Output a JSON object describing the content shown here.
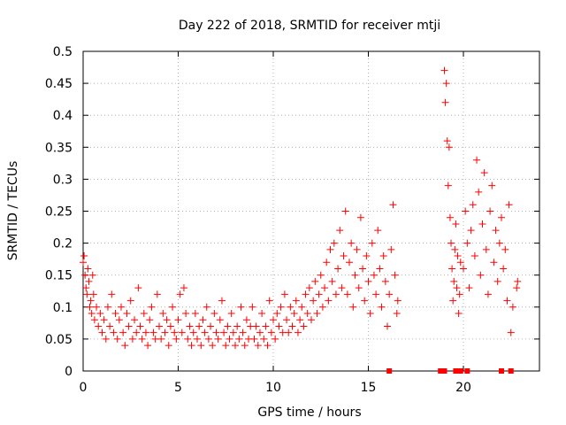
{
  "chart_data": {
    "type": "scatter",
    "title": "Day 222 of 2018, SRMTID for receiver mtji",
    "xlabel": "GPS time / hours",
    "ylabel": "SRMTID / TECUs",
    "xlim": [
      0,
      24
    ],
    "ylim": [
      0,
      0.5
    ],
    "x_ticks": [
      0,
      5,
      10,
      15,
      20
    ],
    "y_ticks": [
      0,
      0.05,
      0.1,
      0.15,
      0.2,
      0.25,
      0.3,
      0.35,
      0.4,
      0.45,
      0.5
    ],
    "grid": true,
    "legend": "none",
    "marker": "+",
    "color": "#ff0000",
    "series": [
      {
        "values_note": "",
        "points": [
          [
            0.0,
            0.17
          ],
          [
            0.05,
            0.18
          ],
          [
            0.1,
            0.15
          ],
          [
            0.15,
            0.13
          ],
          [
            0.2,
            0.12
          ],
          [
            0.25,
            0.16
          ],
          [
            0.3,
            0.14
          ],
          [
            0.35,
            0.1
          ],
          [
            0.4,
            0.11
          ],
          [
            0.45,
            0.09
          ],
          [
            0.5,
            0.15
          ],
          [
            0.55,
            0.12
          ],
          [
            0.6,
            0.08
          ],
          [
            0.7,
            0.1
          ],
          [
            0.8,
            0.07
          ],
          [
            0.9,
            0.09
          ],
          [
            1.0,
            0.06
          ],
          [
            1.1,
            0.08
          ],
          [
            1.2,
            0.05
          ],
          [
            1.3,
            0.1
          ],
          [
            1.4,
            0.07
          ],
          [
            1.5,
            0.12
          ],
          [
            1.6,
            0.06
          ],
          [
            1.7,
            0.09
          ],
          [
            1.8,
            0.05
          ],
          [
            1.9,
            0.08
          ],
          [
            2.0,
            0.1
          ],
          [
            2.1,
            0.06
          ],
          [
            2.2,
            0.04
          ],
          [
            2.3,
            0.09
          ],
          [
            2.4,
            0.07
          ],
          [
            2.5,
            0.11
          ],
          [
            2.6,
            0.05
          ],
          [
            2.7,
            0.08
          ],
          [
            2.8,
            0.06
          ],
          [
            2.9,
            0.13
          ],
          [
            3.0,
            0.07
          ],
          [
            3.1,
            0.05
          ],
          [
            3.2,
            0.09
          ],
          [
            3.3,
            0.06
          ],
          [
            3.4,
            0.04
          ],
          [
            3.5,
            0.08
          ],
          [
            3.6,
            0.1
          ],
          [
            3.7,
            0.06
          ],
          [
            3.8,
            0.05
          ],
          [
            3.9,
            0.12
          ],
          [
            4.0,
            0.07
          ],
          [
            4.1,
            0.05
          ],
          [
            4.2,
            0.09
          ],
          [
            4.3,
            0.06
          ],
          [
            4.4,
            0.08
          ],
          [
            4.5,
            0.04
          ],
          [
            4.6,
            0.07
          ],
          [
            4.7,
            0.1
          ],
          [
            4.8,
            0.06
          ],
          [
            4.9,
            0.05
          ],
          [
            5.0,
            0.08
          ],
          [
            5.1,
            0.12
          ],
          [
            5.2,
            0.06
          ],
          [
            5.3,
            0.13
          ],
          [
            5.4,
            0.09
          ],
          [
            5.5,
            0.05
          ],
          [
            5.6,
            0.07
          ],
          [
            5.7,
            0.04
          ],
          [
            5.8,
            0.06
          ],
          [
            5.9,
            0.09
          ],
          [
            6.0,
            0.05
          ],
          [
            6.1,
            0.07
          ],
          [
            6.2,
            0.04
          ],
          [
            6.3,
            0.08
          ],
          [
            6.4,
            0.06
          ],
          [
            6.5,
            0.1
          ],
          [
            6.6,
            0.05
          ],
          [
            6.7,
            0.07
          ],
          [
            6.8,
            0.04
          ],
          [
            6.9,
            0.09
          ],
          [
            7.0,
            0.06
          ],
          [
            7.1,
            0.05
          ],
          [
            7.2,
            0.08
          ],
          [
            7.3,
            0.11
          ],
          [
            7.4,
            0.06
          ],
          [
            7.5,
            0.04
          ],
          [
            7.6,
            0.07
          ],
          [
            7.7,
            0.05
          ],
          [
            7.8,
            0.09
          ],
          [
            7.9,
            0.06
          ],
          [
            8.0,
            0.04
          ],
          [
            8.1,
            0.07
          ],
          [
            8.2,
            0.05
          ],
          [
            8.3,
            0.1
          ],
          [
            8.4,
            0.06
          ],
          [
            8.5,
            0.04
          ],
          [
            8.6,
            0.08
          ],
          [
            8.7,
            0.05
          ],
          [
            8.8,
            0.07
          ],
          [
            8.9,
            0.1
          ],
          [
            9.0,
            0.05
          ],
          [
            9.1,
            0.07
          ],
          [
            9.2,
            0.04
          ],
          [
            9.3,
            0.06
          ],
          [
            9.4,
            0.09
          ],
          [
            9.5,
            0.05
          ],
          [
            9.6,
            0.07
          ],
          [
            9.7,
            0.04
          ],
          [
            9.8,
            0.11
          ],
          [
            9.9,
            0.06
          ],
          [
            10.0,
            0.08
          ],
          [
            10.1,
            0.05
          ],
          [
            10.2,
            0.09
          ],
          [
            10.3,
            0.07
          ],
          [
            10.4,
            0.1
          ],
          [
            10.5,
            0.06
          ],
          [
            10.6,
            0.12
          ],
          [
            10.7,
            0.08
          ],
          [
            10.8,
            0.06
          ],
          [
            10.9,
            0.1
          ],
          [
            11.0,
            0.07
          ],
          [
            11.1,
            0.09
          ],
          [
            11.2,
            0.11
          ],
          [
            11.3,
            0.06
          ],
          [
            11.4,
            0.08
          ],
          [
            11.5,
            0.1
          ],
          [
            11.6,
            0.07
          ],
          [
            11.7,
            0.12
          ],
          [
            11.8,
            0.09
          ],
          [
            11.9,
            0.13
          ],
          [
            12.0,
            0.08
          ],
          [
            12.1,
            0.11
          ],
          [
            12.2,
            0.14
          ],
          [
            12.3,
            0.09
          ],
          [
            12.4,
            0.12
          ],
          [
            12.5,
            0.15
          ],
          [
            12.6,
            0.1
          ],
          [
            12.7,
            0.13
          ],
          [
            12.8,
            0.17
          ],
          [
            12.9,
            0.11
          ],
          [
            13.0,
            0.19
          ],
          [
            13.1,
            0.14
          ],
          [
            13.2,
            0.2
          ],
          [
            13.3,
            0.12
          ],
          [
            13.4,
            0.16
          ],
          [
            13.5,
            0.22
          ],
          [
            13.6,
            0.13
          ],
          [
            13.7,
            0.18
          ],
          [
            13.8,
            0.25
          ],
          [
            13.9,
            0.12
          ],
          [
            14.0,
            0.17
          ],
          [
            14.1,
            0.2
          ],
          [
            14.2,
            0.1
          ],
          [
            14.3,
            0.15
          ],
          [
            14.4,
            0.19
          ],
          [
            14.5,
            0.13
          ],
          [
            14.6,
            0.24
          ],
          [
            14.7,
            0.16
          ],
          [
            14.8,
            0.11
          ],
          [
            14.9,
            0.18
          ],
          [
            15.0,
            0.14
          ],
          [
            15.1,
            0.09
          ],
          [
            15.2,
            0.2
          ],
          [
            15.3,
            0.15
          ],
          [
            15.4,
            0.12
          ],
          [
            15.5,
            0.22
          ],
          [
            15.6,
            0.16
          ],
          [
            15.7,
            0.1
          ],
          [
            15.8,
            0.18
          ],
          [
            15.9,
            0.14
          ],
          [
            16.0,
            0.07
          ],
          [
            16.1,
            0.12
          ],
          [
            16.2,
            0.19
          ],
          [
            16.3,
            0.26
          ],
          [
            16.4,
            0.15
          ],
          [
            16.5,
            0.09
          ],
          [
            16.55,
            0.11
          ],
          [
            19.0,
            0.47
          ],
          [
            19.05,
            0.42
          ],
          [
            19.1,
            0.45
          ],
          [
            19.15,
            0.36
          ],
          [
            19.2,
            0.29
          ],
          [
            19.25,
            0.35
          ],
          [
            19.3,
            0.24
          ],
          [
            19.35,
            0.2
          ],
          [
            19.4,
            0.16
          ],
          [
            19.45,
            0.11
          ],
          [
            19.5,
            0.14
          ],
          [
            19.55,
            0.19
          ],
          [
            19.6,
            0.23
          ],
          [
            19.65,
            0.13
          ],
          [
            19.7,
            0.18
          ],
          [
            19.75,
            0.09
          ],
          [
            19.8,
            0.12
          ],
          [
            19.85,
            0.17
          ],
          [
            20.0,
            0.16
          ],
          [
            20.1,
            0.25
          ],
          [
            20.2,
            0.2
          ],
          [
            20.3,
            0.13
          ],
          [
            20.4,
            0.22
          ],
          [
            20.5,
            0.26
          ],
          [
            20.6,
            0.18
          ],
          [
            20.7,
            0.33
          ],
          [
            20.8,
            0.28
          ],
          [
            20.9,
            0.15
          ],
          [
            21.0,
            0.23
          ],
          [
            21.1,
            0.31
          ],
          [
            21.2,
            0.19
          ],
          [
            21.3,
            0.12
          ],
          [
            21.4,
            0.25
          ],
          [
            21.5,
            0.29
          ],
          [
            21.6,
            0.17
          ],
          [
            21.7,
            0.22
          ],
          [
            21.8,
            0.14
          ],
          [
            21.9,
            0.2
          ],
          [
            22.0,
            0.24
          ],
          [
            22.1,
            0.16
          ],
          [
            22.2,
            0.19
          ],
          [
            22.3,
            0.11
          ],
          [
            22.4,
            0.26
          ],
          [
            22.5,
            0.06
          ],
          [
            22.6,
            0.1
          ],
          [
            22.8,
            0.13
          ],
          [
            22.85,
            0.14
          ]
        ]
      }
    ],
    "zero_markers_x": [
      16.1,
      18.8,
      18.95,
      19.0,
      19.6,
      19.75,
      19.85,
      20.2,
      22.0,
      22.5
    ]
  }
}
